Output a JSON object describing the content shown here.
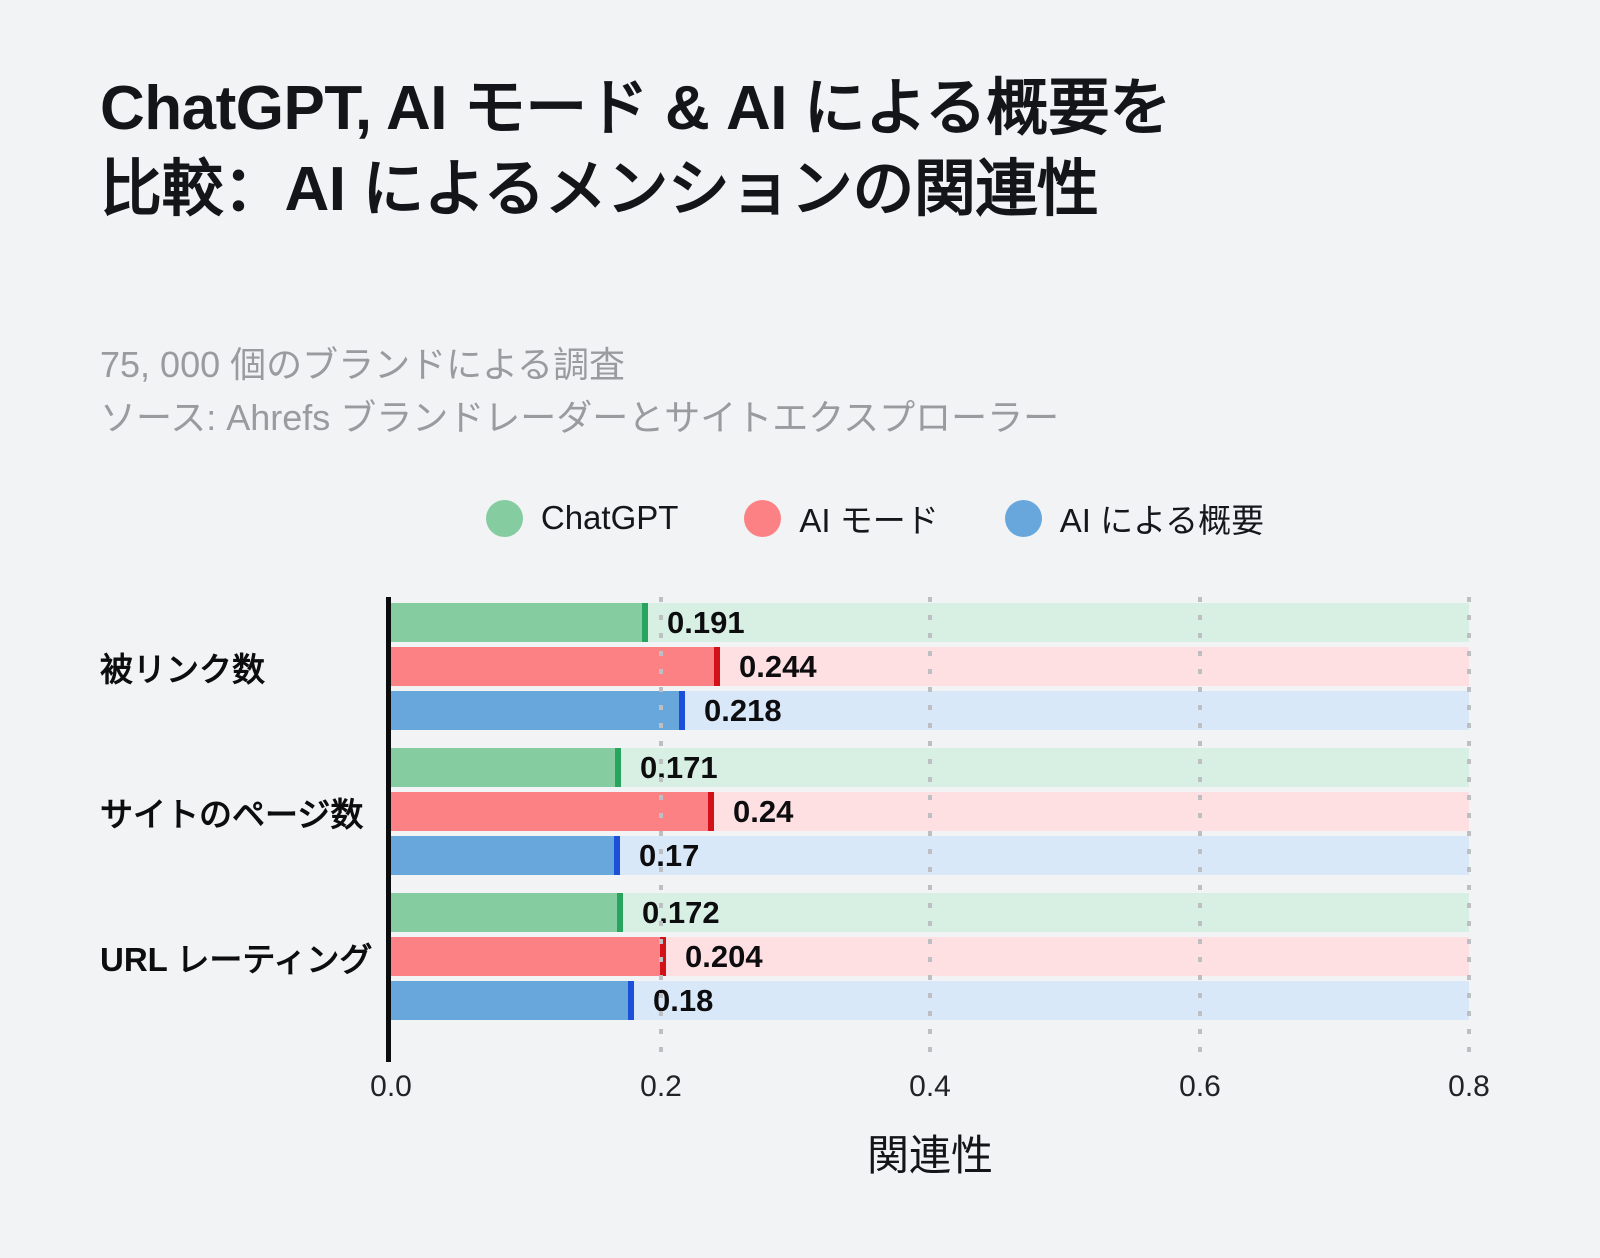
{
  "title_line1": "ChatGPT, AI モード & AI による概要を",
  "title_line2": "比較：AI によるメンションの関連性",
  "subtitle_line1": "75, 000 個のブランドによる調査",
  "subtitle_line2": "ソース: Ahrefs ブランドレーダーとサイトエクスプローラー",
  "background_color": "#f2f3f5",
  "chart_data": {
    "type": "bar",
    "orientation": "horizontal",
    "title": "ChatGPT, AI モード & AI による概要を比較：AI によるメンションの関連性",
    "categories": [
      "被リンク数",
      "サイトのページ数",
      "URL レーティング"
    ],
    "series": [
      {
        "name": "ChatGPT",
        "values": [
          0.191,
          0.171,
          0.172
        ],
        "value_labels": [
          "0.191",
          "0.171",
          "0.172"
        ],
        "color": "#85cda0",
        "track_color": "#d8efe3",
        "cap_color": "#28a45e"
      },
      {
        "name": "AI モード",
        "values": [
          0.244,
          0.24,
          0.204
        ],
        "value_labels": [
          "0.244",
          "0.24",
          "0.204"
        ],
        "color": "#fc8185",
        "track_color": "#fee0e2",
        "cap_color": "#d31118"
      },
      {
        "name": "AI による概要",
        "values": [
          0.218,
          0.17,
          0.18
        ],
        "value_labels": [
          "0.218",
          "0.17",
          "0.18"
        ],
        "color": "#68a7dc",
        "track_color": "#d9e8f8",
        "cap_color": "#1d50d9"
      }
    ],
    "xlabel": "関連性",
    "x_ticks": [
      0.0,
      0.2,
      0.4,
      0.6,
      0.8
    ],
    "x_tick_labels": [
      "0.0",
      "0.2",
      "0.4",
      "0.6",
      "0.8"
    ],
    "xlim": [
      0,
      0.8
    ],
    "track_extent": 0.8,
    "grid": "dotted-vertical",
    "gridline_color": "#bdbfc3",
    "legend_position": "top-center"
  }
}
